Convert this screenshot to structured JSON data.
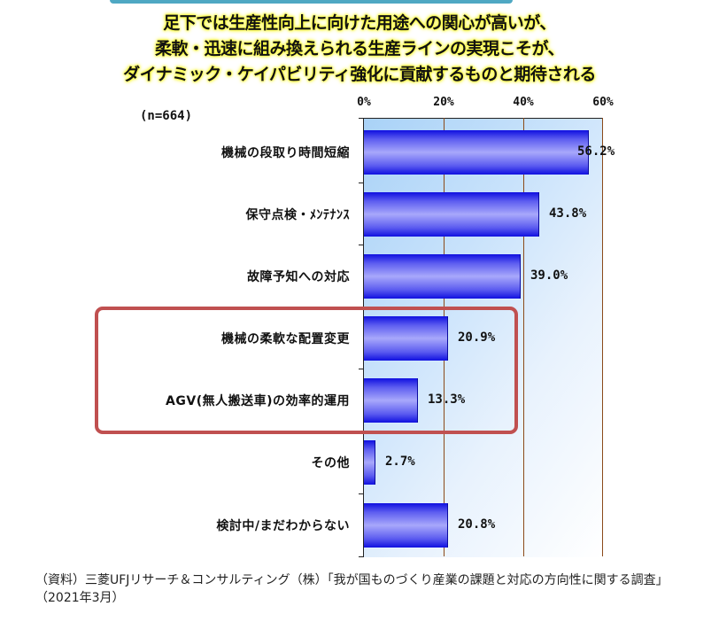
{
  "header": {
    "lines": [
      "足下では生産性向上に向けた用途への関心が高いが、",
      "柔軟・迅速に組み換えられる生産ラインの実現こそが、",
      "ダイナミック・ケイパビリティ強化に貢献するものと期待される"
    ]
  },
  "sample_size": "(n=664)",
  "axis": {
    "ticks": [
      "0%",
      "20%",
      "40%",
      "60%"
    ]
  },
  "colors": {
    "bar": "#2020e8",
    "grid": "#8b4a1a",
    "highlight_box": "#c05050",
    "top_bar": "#4fa8c3"
  },
  "chart_data": {
    "type": "bar",
    "orientation": "horizontal",
    "title": "足下では生産性向上に向けた用途への関心が高いが、柔軟・迅速に組み換えられる生産ラインの実現こそが、ダイナミック・ケイパビリティ強化に貢献するものと期待される",
    "categories": [
      "機械の段取り時間短縮",
      "保守点検・ﾒﾝﾃﾅﾝｽ",
      "故障予知への対応",
      "機械の柔軟な配置変更",
      "AGV(無人搬送車)の効率的運用",
      "その他",
      "検討中/まだわからない"
    ],
    "values": [
      56.2,
      43.8,
      39.0,
      20.9,
      13.3,
      2.7,
      20.8
    ],
    "value_labels": [
      "56.2%",
      "43.8%",
      "39.0%",
      "20.9%",
      "13.3%",
      "2.7%",
      "20.8%"
    ],
    "xlabel": "",
    "ylabel": "",
    "xlim": [
      0,
      60
    ],
    "x_ticks": [
      "0%",
      "20%",
      "40%",
      "60%"
    ],
    "grid": true,
    "legend": "none",
    "annotations": [
      "(n=664)",
      "red box highlighting 機械の柔軟な配置変更 and AGV(無人搬送車)の効率的運用"
    ]
  },
  "source": "（資料）三菱UFJリサーチ＆コンサルティング（株）「我が国ものづくり産業の課題と対応の方向性に関する調査」（2021年3月）"
}
